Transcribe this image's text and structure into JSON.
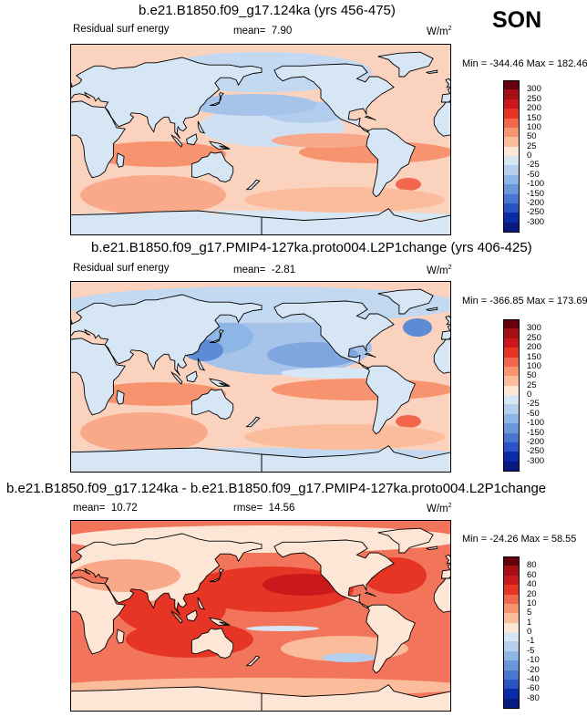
{
  "season": "SON",
  "panels": [
    {
      "title": "b.e21.B1850.f09_g17.124ka (yrs 456-475)",
      "left_label": "Residual surf energy",
      "mean_label": "mean=",
      "mean_value": "7.90",
      "rmse_label": "",
      "rmse_value": "",
      "units": "W/m",
      "units_sup": "2",
      "minmax": "Min = -344.46 Max = 182.46",
      "min": -344.46,
      "max": 182.46,
      "mean": 7.9,
      "colorbar": {
        "levels": [
          "300",
          "250",
          "200",
          "150",
          "100",
          "50",
          "25",
          "0",
          "-25",
          "-50",
          "-100",
          "-150",
          "-200",
          "-250",
          "-300"
        ],
        "colors": [
          "#67000d",
          "#a50f15",
          "#cb181d",
          "#e63524",
          "#f2664d",
          "#f7946f",
          "#fbbc9b",
          "#fde6d6",
          "#d6e6f5",
          "#b4d0ee",
          "#8db5e6",
          "#6a96da",
          "#4876d0",
          "#2a53c4",
          "#0b2aa8",
          "#081a80"
        ]
      },
      "map_bg": "#fbd2bd"
    },
    {
      "title": "b.e21.B1850.f09_g17.PMIP4-127ka.proto004.L2P1change (yrs 406-425)",
      "left_label": "Residual surf energy",
      "mean_label": "mean=",
      "mean_value": "-2.81",
      "rmse_label": "",
      "rmse_value": "",
      "units": "W/m",
      "units_sup": "2",
      "minmax": "Min = -366.85 Max = 173.69",
      "min": -366.85,
      "max": 173.69,
      "mean": -2.81,
      "colorbar": {
        "levels": [
          "300",
          "250",
          "200",
          "150",
          "100",
          "50",
          "25",
          "0",
          "-25",
          "-50",
          "-100",
          "-150",
          "-200",
          "-250",
          "-300"
        ],
        "colors": [
          "#67000d",
          "#a50f15",
          "#cb181d",
          "#e63524",
          "#f2664d",
          "#f7946f",
          "#fbbc9b",
          "#fde6d6",
          "#d6e6f5",
          "#b4d0ee",
          "#8db5e6",
          "#6a96da",
          "#4876d0",
          "#2a53c4",
          "#0b2aa8",
          "#081a80"
        ]
      },
      "map_bg": "#fbd2bd"
    },
    {
      "title": "b.e21.B1850.f09_g17.124ka - b.e21.B1850.f09_g17.PMIP4-127ka.proto004.L2P1change",
      "left_label": "",
      "mean_label": "mean=",
      "mean_value": "10.72",
      "rmse_label": "rmse=",
      "rmse_value": "14.56",
      "units": "W/m",
      "units_sup": "2",
      "minmax": "Min = -24.26 Max = 58.55",
      "min": -24.26,
      "max": 58.55,
      "mean": 10.72,
      "rmse": 14.56,
      "colorbar": {
        "levels": [
          "80",
          "60",
          "40",
          "20",
          "10",
          "5",
          "1",
          "0",
          "-1",
          "-5",
          "-10",
          "-20",
          "-40",
          "-60",
          "-80"
        ],
        "colors": [
          "#67000d",
          "#a50f15",
          "#cb181d",
          "#e63524",
          "#f2664d",
          "#f7946f",
          "#fbbc9b",
          "#fde6d6",
          "#d6e6f5",
          "#b4d0ee",
          "#8db5e6",
          "#6a96da",
          "#4876d0",
          "#2a53c4",
          "#0b2aa8",
          "#081a80"
        ]
      },
      "map_bg": "#f2745a"
    }
  ],
  "chart_data": [
    {
      "type": "heatmap",
      "title": "b.e21.B1850.f09_g17.124ka (yrs 456-475)",
      "variable": "Residual surf energy",
      "units": "W/m2",
      "mean": 7.9,
      "min": -344.46,
      "max": 182.46,
      "levels": [
        -300,
        -250,
        -200,
        -150,
        -100,
        -50,
        -25,
        0,
        25,
        50,
        100,
        150,
        200,
        250,
        300
      ]
    },
    {
      "type": "heatmap",
      "title": "b.e21.B1850.f09_g17.PMIP4-127ka.proto004.L2P1change (yrs 406-425)",
      "variable": "Residual surf energy",
      "units": "W/m2",
      "mean": -2.81,
      "min": -366.85,
      "max": 173.69,
      "levels": [
        -300,
        -250,
        -200,
        -150,
        -100,
        -50,
        -25,
        0,
        25,
        50,
        100,
        150,
        200,
        250,
        300
      ]
    },
    {
      "type": "heatmap",
      "title": "b.e21.B1850.f09_g17.124ka - b.e21.B1850.f09_g17.PMIP4-127ka.proto004.L2P1change",
      "units": "W/m2",
      "mean": 10.72,
      "rmse": 14.56,
      "min": -24.26,
      "max": 58.55,
      "levels": [
        -80,
        -60,
        -40,
        -20,
        -10,
        -5,
        -1,
        0,
        1,
        5,
        10,
        20,
        40,
        60,
        80
      ]
    }
  ]
}
